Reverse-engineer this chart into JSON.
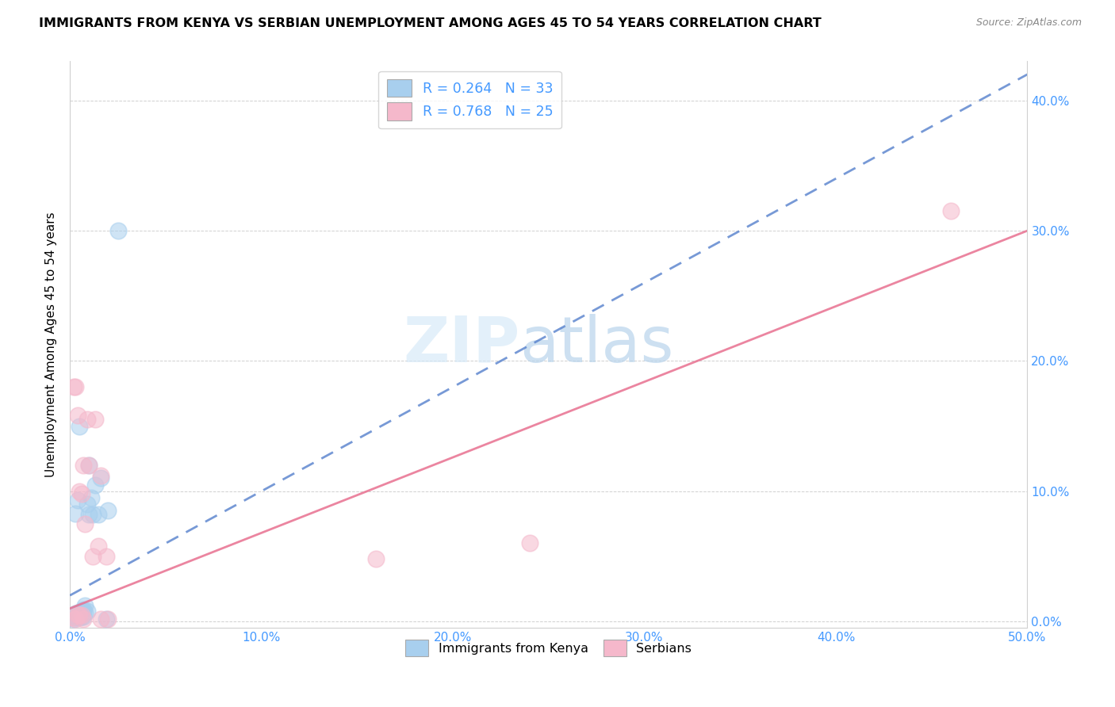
{
  "title": "IMMIGRANTS FROM KENYA VS SERBIAN UNEMPLOYMENT AMONG AGES 45 TO 54 YEARS CORRELATION CHART",
  "source": "Source: ZipAtlas.com",
  "ylabel": "Unemployment Among Ages 45 to 54 years",
  "xlim": [
    0.0,
    0.5
  ],
  "ylim": [
    -0.005,
    0.43
  ],
  "xticks": [
    0.0,
    0.1,
    0.2,
    0.3,
    0.4,
    0.5
  ],
  "yticks": [
    0.0,
    0.1,
    0.2,
    0.3,
    0.4
  ],
  "xticklabels": [
    "0.0%",
    "10.0%",
    "20.0%",
    "30.0%",
    "40.0%",
    "50.0%"
  ],
  "right_yticklabels": [
    "0.0%",
    "10.0%",
    "20.0%",
    "30.0%",
    "40.0%"
  ],
  "tick_color": "#4499FF",
  "kenya_color": "#A8CFEE",
  "serbia_color": "#F5B8CB",
  "kenya_line_color": "#5580CC",
  "serbia_line_color": "#E87090",
  "kenya_R": 0.264,
  "kenya_N": 33,
  "serbia_R": 0.768,
  "serbia_N": 25,
  "kenya_line_x0": 0.0,
  "kenya_line_y0": 0.02,
  "kenya_line_x1": 0.5,
  "kenya_line_y1": 0.42,
  "serbia_line_x0": 0.0,
  "serbia_line_y0": 0.01,
  "serbia_line_x1": 0.5,
  "serbia_line_y1": 0.3,
  "kenya_scatter_x": [
    0.001,
    0.002,
    0.002,
    0.003,
    0.003,
    0.003,
    0.004,
    0.004,
    0.004,
    0.005,
    0.005,
    0.005,
    0.005,
    0.006,
    0.006,
    0.006,
    0.007,
    0.007,
    0.007,
    0.008,
    0.008,
    0.009,
    0.009,
    0.01,
    0.01,
    0.011,
    0.012,
    0.013,
    0.015,
    0.016,
    0.019,
    0.02,
    0.025
  ],
  "kenya_scatter_y": [
    0.003,
    0.002,
    0.005,
    0.003,
    0.006,
    0.083,
    0.004,
    0.007,
    0.093,
    0.003,
    0.007,
    0.007,
    0.15,
    0.004,
    0.008,
    0.008,
    0.004,
    0.008,
    0.009,
    0.007,
    0.012,
    0.008,
    0.09,
    0.082,
    0.12,
    0.095,
    0.082,
    0.105,
    0.082,
    0.11,
    0.002,
    0.085,
    0.3
  ],
  "serbia_scatter_x": [
    0.001,
    0.002,
    0.003,
    0.003,
    0.004,
    0.004,
    0.005,
    0.005,
    0.006,
    0.006,
    0.007,
    0.007,
    0.008,
    0.009,
    0.01,
    0.012,
    0.013,
    0.015,
    0.016,
    0.016,
    0.019,
    0.02,
    0.16,
    0.24,
    0.46
  ],
  "serbia_scatter_y": [
    0.003,
    0.18,
    0.18,
    0.002,
    0.005,
    0.158,
    0.005,
    0.1,
    0.005,
    0.098,
    0.12,
    0.002,
    0.075,
    0.155,
    0.12,
    0.05,
    0.155,
    0.058,
    0.112,
    0.002,
    0.05,
    0.002,
    0.048,
    0.06,
    0.315
  ]
}
